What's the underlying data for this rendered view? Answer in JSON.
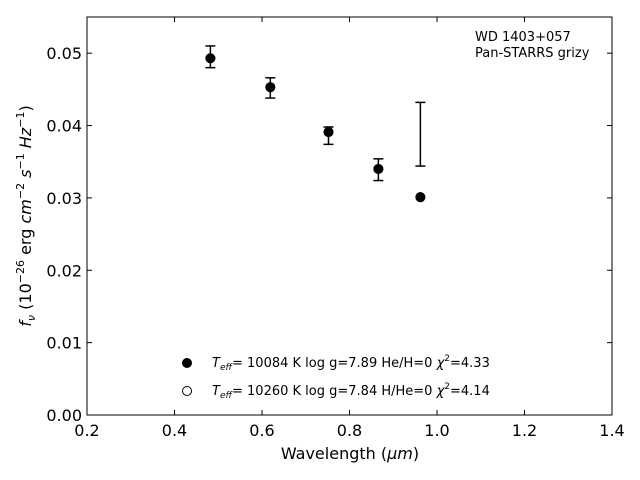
{
  "chart_data": {
    "type": "scatter",
    "annotation": [
      "WD 1403+057",
      "Pan-STARRS grizy"
    ],
    "xlim": [
      0.2,
      1.4
    ],
    "ylim": [
      0.0,
      0.055
    ],
    "x_ticks": [
      "0.2",
      "0.4",
      "0.6",
      "0.8",
      "1.0",
      "1.2",
      "1.4"
    ],
    "y_ticks": [
      "0.00",
      "0.01",
      "0.02",
      "0.03",
      "0.04",
      "0.05"
    ],
    "grid": false,
    "legend_position": "bottom-center",
    "observed": {
      "x": [
        0.482,
        0.619,
        0.752,
        0.866,
        0.962
      ],
      "y": [
        0.0495,
        0.0452,
        0.0386,
        0.0339,
        0.0388
      ],
      "yerr": [
        0.0015,
        0.0014,
        0.0012,
        0.0015,
        0.0044
      ]
    },
    "series": [
      {
        "name": "T_eff= 10084 K  log g=7.89  He/H=0  χ²=4.33",
        "marker": "filled",
        "x": [
          0.482,
          0.619,
          0.752,
          0.866,
          0.962
        ],
        "y": [
          0.0493,
          0.0453,
          0.0391,
          0.034,
          0.0301
        ]
      },
      {
        "name": "T_eff= 10260 K  log g=7.84  H/He=0  χ²=4.14",
        "marker": "open",
        "x": [
          0.482,
          0.619,
          0.752,
          0.866,
          0.962
        ],
        "y": [
          0.0493,
          0.0453,
          0.0391,
          0.034,
          0.0301
        ]
      }
    ]
  },
  "labels": {
    "ann_line1": "WD 1403+057",
    "ann_line2": "Pan-STARRS grizy",
    "xlabel_main": "Wavelength (",
    "xlabel_unit": "μm",
    "xlabel_close": ")",
    "ylabel_f": "f",
    "ylabel_nu": "ν",
    "ylabel_rest": " (10",
    "ylabel_exp1": "−26",
    "ylabel_erg": " erg ",
    "ylabel_cm": "cm",
    "ylabel_exp2": "−2",
    "ylabel_s": " s",
    "ylabel_exp3": "−1",
    "ylabel_hz": " Hz",
    "ylabel_exp4": "−1",
    "ylabel_end": ")",
    "leg1_T": "T",
    "leg1_sub": "eff",
    "leg1_text": "= 10084 K  log g=7.89  He/H=0  ",
    "leg1_chi": "χ",
    "leg1_sup": "2",
    "leg1_val": "=4.33",
    "leg2_T": "T",
    "leg2_sub": "eff",
    "leg2_text": "= 10260 K  log g=7.84  H/He=0  ",
    "leg2_chi": "χ",
    "leg2_sup": "2",
    "leg2_val": "=4.14"
  }
}
